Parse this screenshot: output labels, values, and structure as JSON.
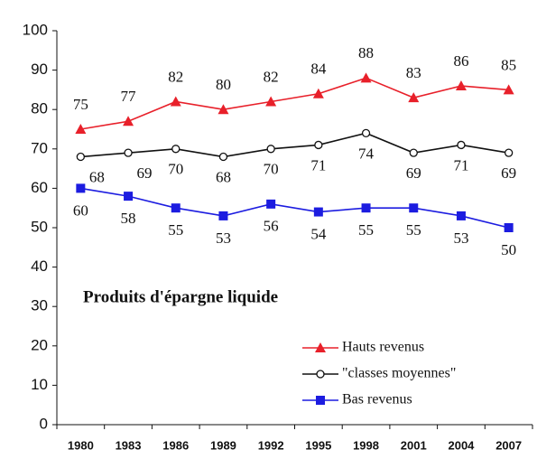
{
  "chart_data": {
    "type": "line",
    "annotation": "Produits d'épargne liquide",
    "categories": [
      "1980",
      "1983",
      "1986",
      "1989",
      "1992",
      "1995",
      "1998",
      "2001",
      "2004",
      "2007"
    ],
    "series": [
      {
        "name": "Hauts revenus",
        "color": "#e8202a",
        "marker": "triangle",
        "values": [
          75,
          77,
          82,
          80,
          82,
          84,
          88,
          83,
          86,
          85
        ]
      },
      {
        "name": "\"classes moyennes\"",
        "color": "#111111",
        "marker": "circle",
        "values": [
          68,
          69,
          70,
          68,
          70,
          71,
          74,
          69,
          71,
          69
        ]
      },
      {
        "name": "Bas revenus",
        "color": "#1c1ce0",
        "marker": "square",
        "values": [
          60,
          58,
          55,
          53,
          56,
          54,
          55,
          55,
          53,
          50
        ]
      }
    ],
    "ylim": [
      0,
      100
    ],
    "yticks": [
      0,
      10,
      20,
      30,
      40,
      50,
      60,
      70,
      80,
      90,
      100
    ],
    "grid": false,
    "legend": "lower right"
  }
}
